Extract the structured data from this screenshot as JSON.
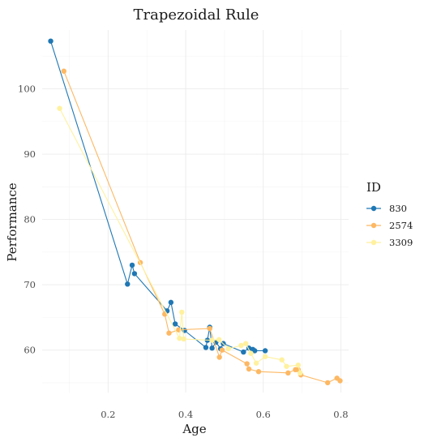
{
  "chart_data": {
    "type": "line",
    "title": "Trapezoidal Rule",
    "xlabel": "Age",
    "ylabel": "Performance",
    "xlim": [
      0.03,
      0.82
    ],
    "ylim": [
      53.5,
      109
    ],
    "x_ticks": [
      0.2,
      0.4,
      0.6,
      0.8
    ],
    "x_tick_labels": [
      "0.2",
      "0.4",
      "0.6",
      "0.8"
    ],
    "y_ticks": [
      60,
      70,
      80,
      90,
      100
    ],
    "y_tick_labels": [
      "60",
      "70",
      "80",
      "90",
      "100"
    ],
    "grid": true,
    "legend": {
      "title": "ID",
      "position": "right"
    },
    "series": [
      {
        "name": "830",
        "color": "#1f77b4",
        "points": [
          [
            0.052,
            107.3
          ],
          [
            0.25,
            70.1
          ],
          [
            0.262,
            73.0
          ],
          [
            0.268,
            71.7
          ],
          [
            0.352,
            66.0
          ],
          [
            0.362,
            67.3
          ],
          [
            0.373,
            64.0
          ],
          [
            0.397,
            63.0
          ],
          [
            0.452,
            60.4
          ],
          [
            0.456,
            61.5
          ],
          [
            0.462,
            63.5
          ],
          [
            0.468,
            60.3
          ],
          [
            0.478,
            61.2
          ],
          [
            0.49,
            60.2
          ],
          [
            0.497,
            61.0
          ],
          [
            0.549,
            59.7
          ],
          [
            0.563,
            60.3
          ],
          [
            0.573,
            60.1
          ],
          [
            0.578,
            59.9
          ],
          [
            0.605,
            59.9
          ]
        ]
      },
      {
        "name": "2574",
        "color": "#fdb863",
        "points": [
          [
            0.086,
            102.7
          ],
          [
            0.283,
            73.4
          ],
          [
            0.346,
            65.5
          ],
          [
            0.357,
            62.6
          ],
          [
            0.382,
            63.1
          ],
          [
            0.462,
            63.3
          ],
          [
            0.487,
            58.9
          ],
          [
            0.494,
            60.0
          ],
          [
            0.558,
            57.9
          ],
          [
            0.563,
            57.1
          ],
          [
            0.588,
            56.7
          ],
          [
            0.664,
            56.5
          ],
          [
            0.683,
            57.0
          ],
          [
            0.69,
            57.0
          ],
          [
            0.697,
            56.2
          ],
          [
            0.766,
            55.0
          ],
          [
            0.79,
            55.7
          ],
          [
            0.798,
            55.3
          ]
        ]
      },
      {
        "name": "3309",
        "color": "#fff19e",
        "points": [
          [
            0.075,
            97.0
          ],
          [
            0.384,
            61.8
          ],
          [
            0.39,
            65.8
          ],
          [
            0.395,
            61.7
          ],
          [
            0.468,
            61.5
          ],
          [
            0.486,
            61.6
          ],
          [
            0.51,
            60.2
          ],
          [
            0.543,
            60.7
          ],
          [
            0.555,
            61.0
          ],
          [
            0.568,
            59.5
          ],
          [
            0.582,
            58.0
          ],
          [
            0.605,
            59.0
          ],
          [
            0.648,
            58.5
          ],
          [
            0.66,
            57.5
          ],
          [
            0.69,
            57.7
          ],
          [
            0.695,
            56.5
          ]
        ]
      }
    ]
  }
}
